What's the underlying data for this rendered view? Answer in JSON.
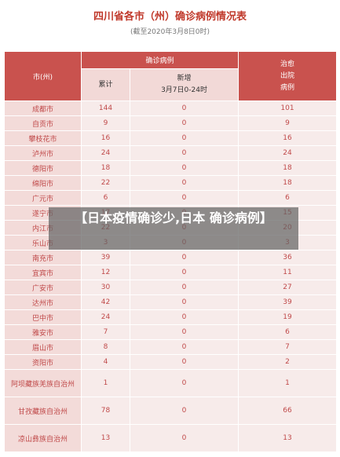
{
  "title": "四川省各市（州）确诊病例情况表",
  "subtitle": "(截至2020年3月8日0时)",
  "headers": {
    "city": "市(州)",
    "confirmed_group": "确诊病例",
    "cumulative": "累计",
    "new_line1": "新增",
    "new_line2": "3月7日0-24时",
    "cured_line1": "治愈",
    "cured_line2": "出院",
    "cured_line3": "病例"
  },
  "rows": [
    {
      "city": "成都市",
      "cumulative": "144",
      "new": "0",
      "cured": "101"
    },
    {
      "city": "自贡市",
      "cumulative": "9",
      "new": "0",
      "cured": "9"
    },
    {
      "city": "攀枝花市",
      "cumulative": "16",
      "new": "0",
      "cured": "16"
    },
    {
      "city": "泸州市",
      "cumulative": "24",
      "new": "0",
      "cured": "24"
    },
    {
      "city": "德阳市",
      "cumulative": "18",
      "new": "0",
      "cured": "18"
    },
    {
      "city": "绵阳市",
      "cumulative": "22",
      "new": "0",
      "cured": "18"
    },
    {
      "city": "广元市",
      "cumulative": "6",
      "new": "0",
      "cured": "6"
    },
    {
      "city": "遂宁市",
      "cumulative": "17",
      "new": "0",
      "cured": "15"
    },
    {
      "city": "内江市",
      "cumulative": "22",
      "new": "0",
      "cured": "20"
    },
    {
      "city": "乐山市",
      "cumulative": "3",
      "new": "0",
      "cured": "3"
    },
    {
      "city": "南充市",
      "cumulative": "39",
      "new": "0",
      "cured": "36"
    },
    {
      "city": "宜宾市",
      "cumulative": "12",
      "new": "0",
      "cured": "11"
    },
    {
      "city": "广安市",
      "cumulative": "30",
      "new": "0",
      "cured": "27"
    },
    {
      "city": "达州市",
      "cumulative": "42",
      "new": "0",
      "cured": "39"
    },
    {
      "city": "巴中市",
      "cumulative": "24",
      "new": "0",
      "cured": "19"
    },
    {
      "city": "雅安市",
      "cumulative": "7",
      "new": "0",
      "cured": "6"
    },
    {
      "city": "眉山市",
      "cumulative": "8",
      "new": "0",
      "cured": "7"
    },
    {
      "city": "资阳市",
      "cumulative": "4",
      "new": "0",
      "cured": "2"
    },
    {
      "city": "阿坝藏族羌族自治州",
      "cumulative": "1",
      "new": "0",
      "cured": "1"
    },
    {
      "city": "甘孜藏族自治州",
      "cumulative": "78",
      "new": "0",
      "cured": "66"
    },
    {
      "city": "凉山彝族自治州",
      "cumulative": "13",
      "new": "0",
      "cured": "13"
    }
  ],
  "overlay": "【日本疫情确诊少,日本 确诊病例】",
  "colors": {
    "header": "#c9524e",
    "subheader": "#f2d9d7",
    "city_cell": "#f3dbd9",
    "value_cell": "#f7ebea",
    "text_red": "#c04a4a"
  }
}
